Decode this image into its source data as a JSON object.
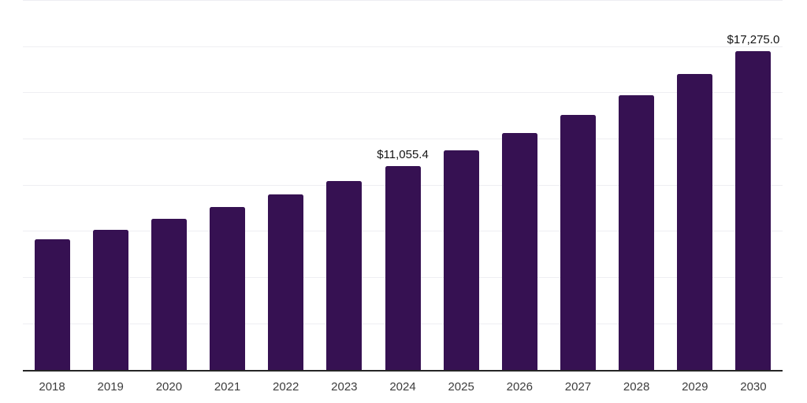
{
  "chart_data": {
    "type": "bar",
    "title": "",
    "xlabel": "",
    "ylabel": "",
    "categories": [
      "2018",
      "2019",
      "2020",
      "2021",
      "2022",
      "2023",
      "2024",
      "2025",
      "2026",
      "2027",
      "2028",
      "2029",
      "2030"
    ],
    "values": [
      7075,
      7622,
      8210,
      8844,
      9527,
      10263,
      11055.4,
      11909,
      12829,
      13820,
      14887,
      16036,
      17275.0
    ],
    "data_labels": {
      "2024": "$11,055.4",
      "2030": "$17,275.0"
    },
    "ylim": [
      0,
      20000
    ],
    "gridline_step": 2500,
    "grid": "horizontal-only",
    "legend": "none",
    "bar_color": "#361152",
    "colors": {
      "background": "#ffffff",
      "gridline": "#eeeef2",
      "axis_line": "#262626",
      "tick_label": "#3d3d3d",
      "data_label": "#141414"
    }
  }
}
